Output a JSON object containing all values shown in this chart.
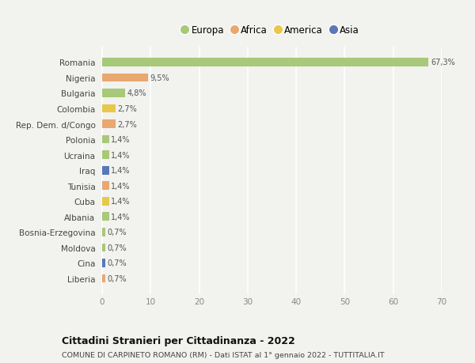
{
  "countries": [
    "Romania",
    "Nigeria",
    "Bulgaria",
    "Colombia",
    "Rep. Dem. d/Congo",
    "Polonia",
    "Ucraina",
    "Iraq",
    "Tunisia",
    "Cuba",
    "Albania",
    "Bosnia-Erzegovina",
    "Moldova",
    "Cina",
    "Liberia"
  ],
  "values": [
    67.3,
    9.5,
    4.8,
    2.7,
    2.7,
    1.4,
    1.4,
    1.4,
    1.4,
    1.4,
    1.4,
    0.7,
    0.7,
    0.7,
    0.7
  ],
  "labels": [
    "67,3%",
    "9,5%",
    "4,8%",
    "2,7%",
    "2,7%",
    "1,4%",
    "1,4%",
    "1,4%",
    "1,4%",
    "1,4%",
    "1,4%",
    "0,7%",
    "0,7%",
    "0,7%",
    "0,7%"
  ],
  "continents": [
    "Europa",
    "Africa",
    "Europa",
    "America",
    "Africa",
    "Europa",
    "Europa",
    "Asia",
    "Africa",
    "America",
    "Europa",
    "Europa",
    "Europa",
    "Asia",
    "Africa"
  ],
  "continent_colors": {
    "Europa": "#a8c87a",
    "Africa": "#e8a870",
    "America": "#e8c84a",
    "Asia": "#5878b8"
  },
  "legend_order": [
    "Europa",
    "Africa",
    "America",
    "Asia"
  ],
  "title": "Cittadini Stranieri per Cittadinanza - 2022",
  "subtitle": "COMUNE DI CARPINETO ROMANO (RM) - Dati ISTAT al 1° gennaio 2022 - TUTTITALIA.IT",
  "xlim": [
    -0.5,
    70
  ],
  "xticks": [
    0,
    10,
    20,
    30,
    40,
    50,
    60,
    70
  ],
  "background_color": "#f2f2ee",
  "grid_color": "#ffffff",
  "bar_height": 0.55
}
